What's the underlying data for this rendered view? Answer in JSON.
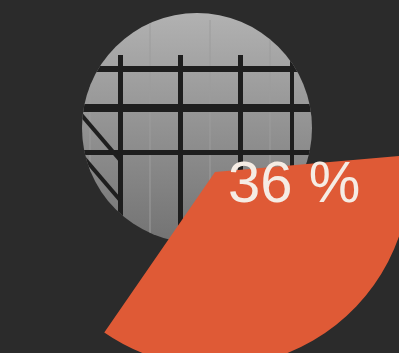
{
  "chart_data": {
    "type": "pie",
    "values": [
      36
    ],
    "value_labels": [
      "36 %"
    ],
    "color": "#df5a36",
    "data_labels": true
  }
}
